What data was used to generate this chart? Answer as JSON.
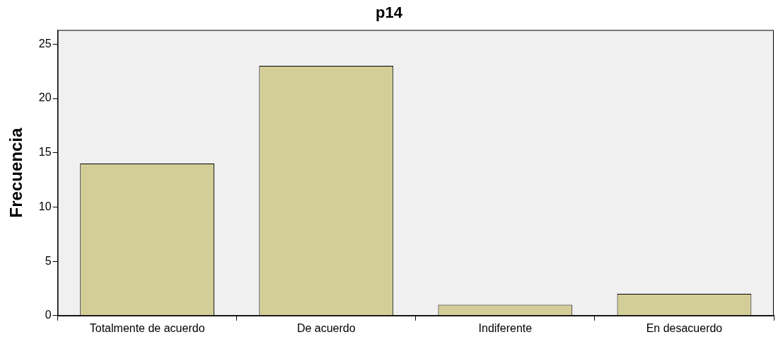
{
  "chart_data": {
    "type": "bar",
    "title": "p14",
    "ylabel": "Frecuencia",
    "categories": [
      "Totalmente de acuerdo",
      "De acuerdo",
      "Indiferente",
      "En desacuerdo"
    ],
    "values": [
      14,
      23,
      1,
      2
    ],
    "color": "#d3cd98",
    "ylim": [
      0,
      26.3
    ],
    "yticks": [
      0,
      5,
      10,
      15,
      20,
      25
    ],
    "grid": false,
    "legend": false
  }
}
